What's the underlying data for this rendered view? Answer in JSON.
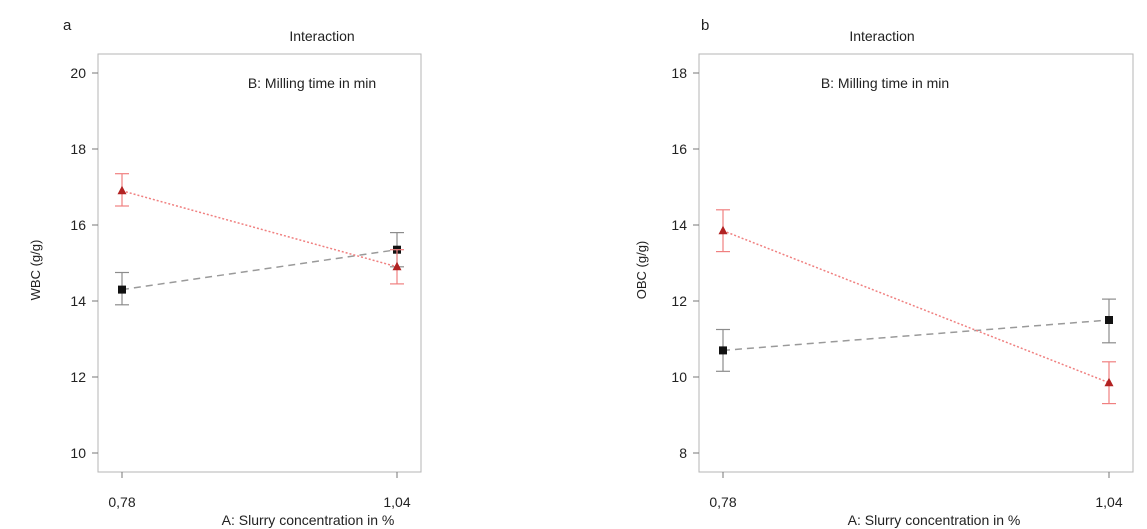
{
  "colors": {
    "series_black": "#111111",
    "series_black_line": "#9a9a9a",
    "series_black_err": "#8c8c8c",
    "series_red": "#b22222",
    "series_red_line": "#f08080",
    "series_red_err": "#f08080"
  },
  "chart_data": [
    {
      "panel_label": "a",
      "type": "line",
      "title": "Interaction",
      "subtitle": "B: Milling time in min",
      "xlabel": "A: Slurry concentration in %",
      "ylabel": "WBC (g/g)",
      "categories": [
        "0,78",
        "1,04"
      ],
      "xlim": [
        0.78,
        1.04
      ],
      "ylim": [
        9.5,
        20.5
      ],
      "yticks": [
        10,
        12,
        14,
        16,
        18,
        20
      ],
      "grid": false,
      "series": [
        {
          "marker": "square",
          "line_style": "dashed",
          "color": "#111111",
          "x": [
            0.78,
            1.04
          ],
          "values": [
            14.3,
            15.35
          ],
          "error_low": [
            13.9,
            14.9
          ],
          "error_high": [
            14.75,
            15.8
          ]
        },
        {
          "marker": "triangle",
          "line_style": "dotted",
          "color": "#b22222",
          "x": [
            0.78,
            1.04
          ],
          "values": [
            16.9,
            14.9
          ],
          "error_low": [
            16.5,
            14.45
          ],
          "error_high": [
            17.35,
            15.35
          ]
        }
      ]
    },
    {
      "panel_label": "b",
      "type": "line",
      "title": "Interaction",
      "subtitle": "B: Milling time in min",
      "xlabel": "A: Slurry concentration in %",
      "ylabel": "OBC (g/g)",
      "categories": [
        "0,78",
        "1,04"
      ],
      "xlim": [
        0.78,
        1.04
      ],
      "ylim": [
        7.5,
        18.5
      ],
      "yticks": [
        8,
        10,
        12,
        14,
        16,
        18
      ],
      "grid": false,
      "series": [
        {
          "marker": "square",
          "line_style": "dashed",
          "color": "#111111",
          "x": [
            0.78,
            1.04
          ],
          "values": [
            10.7,
            11.5
          ],
          "error_low": [
            10.15,
            10.9
          ],
          "error_high": [
            11.25,
            12.05
          ]
        },
        {
          "marker": "triangle",
          "line_style": "dotted",
          "color": "#b22222",
          "x": [
            0.78,
            1.04
          ],
          "values": [
            13.85,
            9.85
          ],
          "error_low": [
            13.3,
            9.3
          ],
          "error_high": [
            14.4,
            10.4
          ]
        }
      ]
    }
  ]
}
